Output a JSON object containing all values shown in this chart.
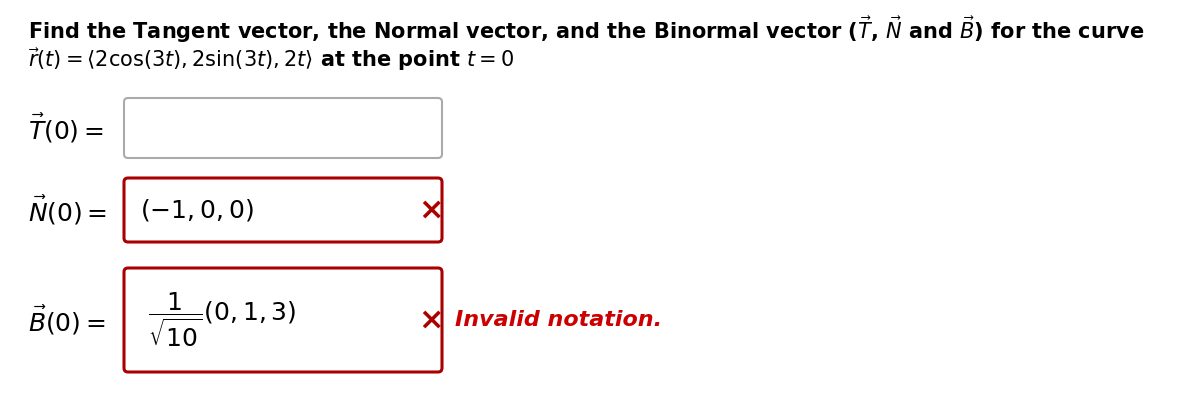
{
  "background_color": "#ffffff",
  "text_color": "#000000",
  "cross_color": "#aa0000",
  "invalid_color": "#cc0000",
  "box_T_color": "#aaaaaa",
  "box_red_color": "#aa0000",
  "font_size_title": 15,
  "font_size_math": 18,
  "font_size_cross": 22,
  "font_size_invalid": 16,
  "title_line1": "Find the Tangent vector, the Normal vector, and the Binormal vector ($\\vec{T}$, $\\vec{N}$ and $\\vec{B}$) for the curve",
  "title_line2": "$\\vec{r}(t) = \\langle 2\\cos(3t), 2\\sin(3t), 2t\\rangle$ at the point $t = 0$",
  "label_T": "$\\vec{T}(0) =$",
  "label_N": "$\\vec{N}(0) =$",
  "label_B": "$\\vec{B}(0) =$",
  "content_N": "$(-1,0,0)$",
  "content_B": "$\\dfrac{1}{\\sqrt{10}}(0,1,3)$",
  "invalid_text": "Invalid notation."
}
